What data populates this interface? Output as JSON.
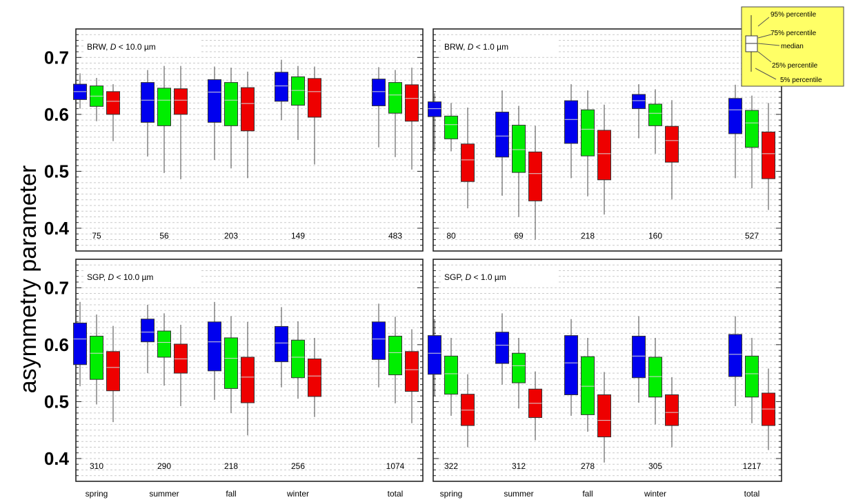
{
  "figure": {
    "ylabel": "asymmetry parameter",
    "season_labels": [
      "spring",
      "summer",
      "fall",
      "winter",
      "total"
    ],
    "ylim": [
      0.36,
      0.75
    ],
    "yticks": [
      "0.4",
      "0.5",
      "0.6",
      "0.7"
    ],
    "colors": [
      "#0000ee",
      "#00ee00",
      "#ee0000"
    ],
    "legend": {
      "p95": "95% percentile",
      "p75": "75% percentile",
      "median": "median",
      "p25": "25% percentile",
      "p5": "5% percentile"
    }
  },
  "chart_data": [
    {
      "type": "box",
      "panel": "BRW, D < 10.0 µm",
      "label_prefix": "BRW, ",
      "label_var": "D",
      "label_suffix": " < 10.0 µm",
      "ylabel": "asymmetry parameter",
      "categories": [
        "spring",
        "summer",
        "fall",
        "winter",
        "total"
      ],
      "counts": [
        "75",
        "56",
        "203",
        "149",
        "483"
      ],
      "boxes": [
        [
          [
            0.61,
            0.626,
            0.64,
            0.653,
            0.672
          ],
          [
            0.588,
            0.614,
            0.632,
            0.65,
            0.664
          ],
          [
            0.553,
            0.6,
            0.623,
            0.64,
            0.653
          ]
        ],
        [
          [
            0.526,
            0.586,
            0.625,
            0.656,
            0.678
          ],
          [
            0.497,
            0.58,
            0.625,
            0.646,
            0.685
          ],
          [
            0.486,
            0.6,
            0.625,
            0.645,
            0.685
          ]
        ],
        [
          [
            0.52,
            0.586,
            0.639,
            0.661,
            0.684
          ],
          [
            0.505,
            0.58,
            0.625,
            0.656,
            0.682
          ],
          [
            0.488,
            0.571,
            0.619,
            0.647,
            0.675
          ]
        ],
        [
          [
            0.59,
            0.623,
            0.65,
            0.674,
            0.696
          ],
          [
            0.555,
            0.616,
            0.642,
            0.666,
            0.685
          ],
          [
            0.512,
            0.595,
            0.64,
            0.663,
            0.684
          ]
        ],
        [
          [
            0.542,
            0.615,
            0.64,
            0.662,
            0.683
          ],
          [
            0.525,
            0.602,
            0.634,
            0.656,
            0.678
          ],
          [
            0.503,
            0.588,
            0.628,
            0.652,
            0.682
          ]
        ]
      ]
    },
    {
      "type": "box",
      "panel": "BRW, D < 1.0 µm",
      "label_prefix": "BRW, ",
      "label_var": "D",
      "label_suffix": " < 1.0 µm",
      "ylabel": "asymmetry parameter",
      "categories": [
        "spring",
        "summer",
        "fall",
        "winter",
        "total"
      ],
      "counts": [
        "80",
        "69",
        "218",
        "160",
        "527"
      ],
      "boxes": [
        [
          [
            0.535,
            0.596,
            0.61,
            0.622,
            0.637
          ],
          [
            0.535,
            0.557,
            0.582,
            0.597,
            0.62
          ],
          [
            0.435,
            0.482,
            0.52,
            0.548,
            0.612
          ]
        ],
        [
          [
            0.457,
            0.525,
            0.562,
            0.604,
            0.642
          ],
          [
            0.42,
            0.498,
            0.538,
            0.581,
            0.615
          ],
          [
            0.38,
            0.448,
            0.496,
            0.534,
            0.58
          ]
        ],
        [
          [
            0.488,
            0.549,
            0.591,
            0.624,
            0.653
          ],
          [
            0.456,
            0.527,
            0.574,
            0.608,
            0.642
          ],
          [
            0.424,
            0.485,
            0.531,
            0.572,
            0.617
          ]
        ],
        [
          [
            0.558,
            0.61,
            0.624,
            0.635,
            0.653
          ],
          [
            0.531,
            0.58,
            0.602,
            0.618,
            0.644
          ],
          [
            0.451,
            0.516,
            0.554,
            0.579,
            0.625
          ]
        ],
        [
          [
            0.488,
            0.566,
            0.608,
            0.628,
            0.652
          ],
          [
            0.47,
            0.542,
            0.585,
            0.607,
            0.633
          ],
          [
            0.432,
            0.487,
            0.531,
            0.569,
            0.62
          ]
        ]
      ]
    },
    {
      "type": "box",
      "panel": "SGP, D < 10.0 µm",
      "label_prefix": "SGP, ",
      "label_var": "D",
      "label_suffix": " < 10.0 µm",
      "ylabel": "asymmetry parameter",
      "categories": [
        "spring",
        "summer",
        "fall",
        "winter",
        "total"
      ],
      "counts": [
        "310",
        "290",
        "218",
        "256",
        "1074"
      ],
      "boxes": [
        [
          [
            0.527,
            0.565,
            0.61,
            0.638,
            0.675
          ],
          [
            0.495,
            0.539,
            0.585,
            0.615,
            0.653
          ],
          [
            0.464,
            0.519,
            0.56,
            0.588,
            0.633
          ]
        ],
        [
          [
            0.55,
            0.605,
            0.622,
            0.645,
            0.67
          ],
          [
            0.528,
            0.578,
            0.604,
            0.624,
            0.655
          ],
          [
            0.492,
            0.55,
            0.575,
            0.601,
            0.635
          ]
        ],
        [
          [
            0.503,
            0.554,
            0.605,
            0.64,
            0.675
          ],
          [
            0.48,
            0.523,
            0.576,
            0.612,
            0.65
          ],
          [
            0.441,
            0.498,
            0.543,
            0.578,
            0.64
          ]
        ],
        [
          [
            0.525,
            0.57,
            0.603,
            0.632,
            0.666
          ],
          [
            0.505,
            0.542,
            0.578,
            0.608,
            0.641
          ],
          [
            0.473,
            0.509,
            0.545,
            0.575,
            0.612
          ]
        ],
        [
          [
            0.525,
            0.574,
            0.61,
            0.64,
            0.672
          ],
          [
            0.497,
            0.547,
            0.586,
            0.615,
            0.649
          ],
          [
            0.462,
            0.518,
            0.556,
            0.588,
            0.627
          ]
        ]
      ]
    },
    {
      "type": "box",
      "panel": "SGP, D < 1.0 µm",
      "label_prefix": "SGP, ",
      "label_var": "D",
      "label_suffix": " < 1.0 µm",
      "ylabel": "asymmetry parameter",
      "categories": [
        "spring",
        "summer",
        "fall",
        "winter",
        "total"
      ],
      "counts": [
        "322",
        "312",
        "278",
        "305",
        "1217"
      ],
      "boxes": [
        [
          [
            0.51,
            0.548,
            0.585,
            0.616,
            0.645
          ],
          [
            0.475,
            0.513,
            0.549,
            0.58,
            0.612
          ],
          [
            0.42,
            0.458,
            0.485,
            0.513,
            0.548
          ]
        ],
        [
          [
            0.53,
            0.567,
            0.599,
            0.622,
            0.655
          ],
          [
            0.488,
            0.533,
            0.563,
            0.585,
            0.612
          ],
          [
            0.432,
            0.472,
            0.497,
            0.522,
            0.553
          ]
        ],
        [
          [
            0.475,
            0.512,
            0.568,
            0.616,
            0.645
          ],
          [
            0.447,
            0.477,
            0.527,
            0.579,
            0.612
          ],
          [
            0.393,
            0.438,
            0.467,
            0.512,
            0.552
          ]
        ],
        [
          [
            0.498,
            0.542,
            0.58,
            0.615,
            0.65
          ],
          [
            0.46,
            0.508,
            0.544,
            0.578,
            0.612
          ],
          [
            0.42,
            0.458,
            0.481,
            0.512,
            0.543
          ]
        ],
        [
          [
            0.492,
            0.544,
            0.583,
            0.618,
            0.65
          ],
          [
            0.462,
            0.508,
            0.549,
            0.58,
            0.612
          ],
          [
            0.415,
            0.458,
            0.487,
            0.515,
            0.558
          ]
        ]
      ]
    }
  ]
}
